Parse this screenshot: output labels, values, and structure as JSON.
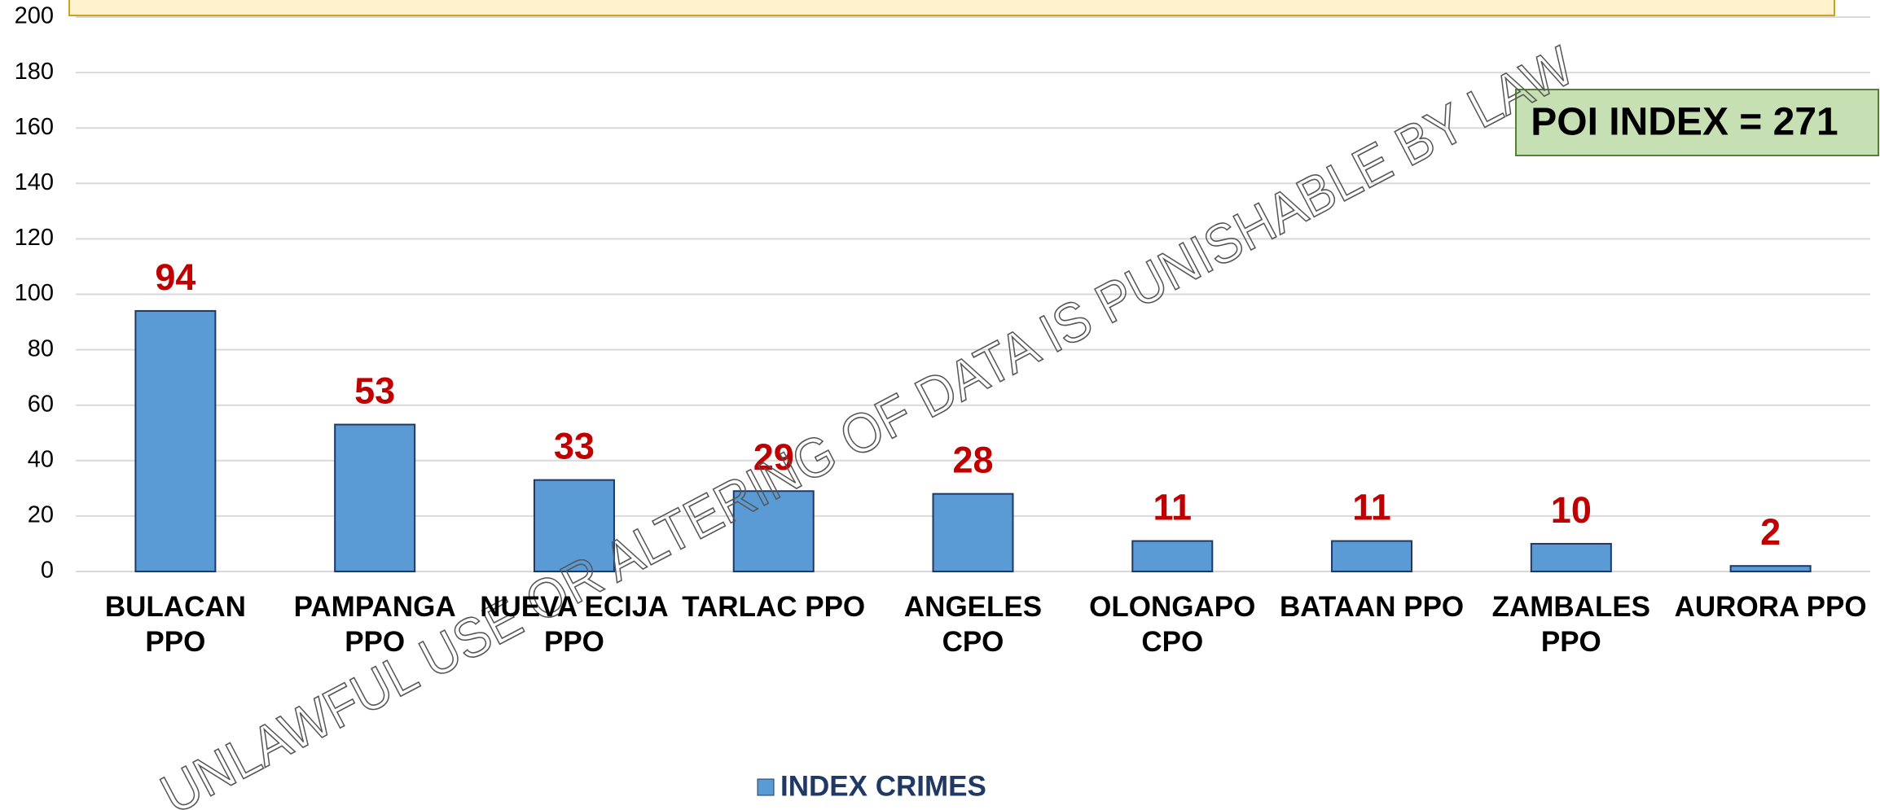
{
  "chart_data": {
    "type": "bar",
    "categories": [
      "BULACAN PPO",
      "PAMPANGA PPO",
      "NUEVA ECIJA PPO",
      "TARLAC PPO",
      "ANGELES CPO",
      "OLONGAPO CPO",
      "BATAAN PPO",
      "ZAMBALES PPO",
      "AURORA PPO"
    ],
    "series": [
      {
        "name": "INDEX CRIMES",
        "color": "#5b9bd5",
        "values": [
          94,
          53,
          33,
          29,
          28,
          11,
          11,
          10,
          2
        ]
      }
    ],
    "ylim": [
      0,
      200
    ],
    "yticks": [
      0,
      20,
      40,
      60,
      80,
      100,
      120,
      140,
      160,
      180,
      200
    ],
    "grid": true,
    "legend": "bottom",
    "annotations": {
      "poi_index": "POI INDEX = 271",
      "watermark": "UNLAWFUL USE OR ALTERING OF DATA IS PUNISHABLE BY LAW"
    }
  }
}
